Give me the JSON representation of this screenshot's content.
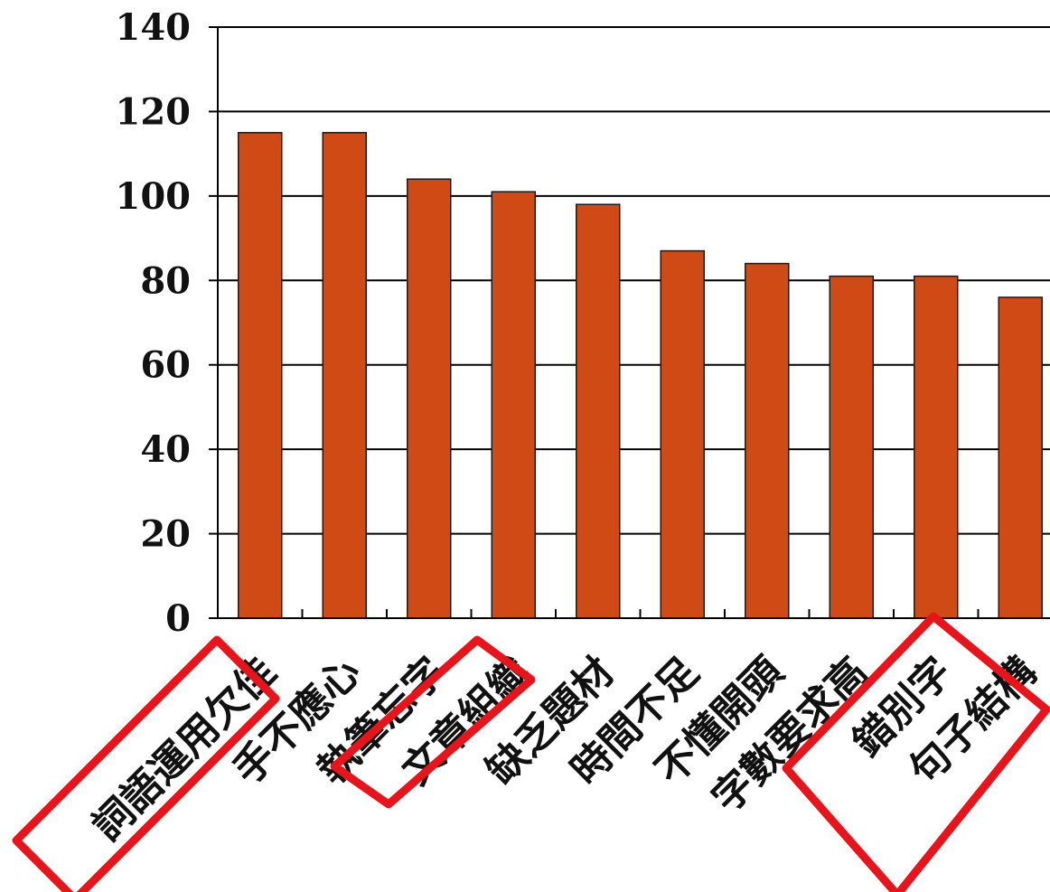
{
  "chart_data": {
    "type": "bar",
    "categories": [
      "詞語運用欠佳",
      "手不應心",
      "執筆忘字",
      "文章組織",
      "缺乏題材",
      "時間不足",
      "不懂開頭",
      "字數要求高",
      "錯別字",
      "句子結構"
    ],
    "values": [
      115,
      115,
      104,
      101,
      98,
      87,
      84,
      81,
      81,
      76
    ],
    "ylim": [
      0,
      140
    ],
    "yticks": [
      0,
      20,
      40,
      60,
      80,
      100,
      120,
      140
    ],
    "grid": true,
    "highlighted_categories": [
      "詞語運用欠佳",
      "文章組織",
      "錯別字",
      "句子結構"
    ],
    "colors": {
      "bar": "#D04A16",
      "bar_stroke": "#1a1a1a",
      "highlight_box": "#E8141B",
      "grid": "#000000"
    },
    "title": "",
    "xlabel": "",
    "ylabel": ""
  }
}
